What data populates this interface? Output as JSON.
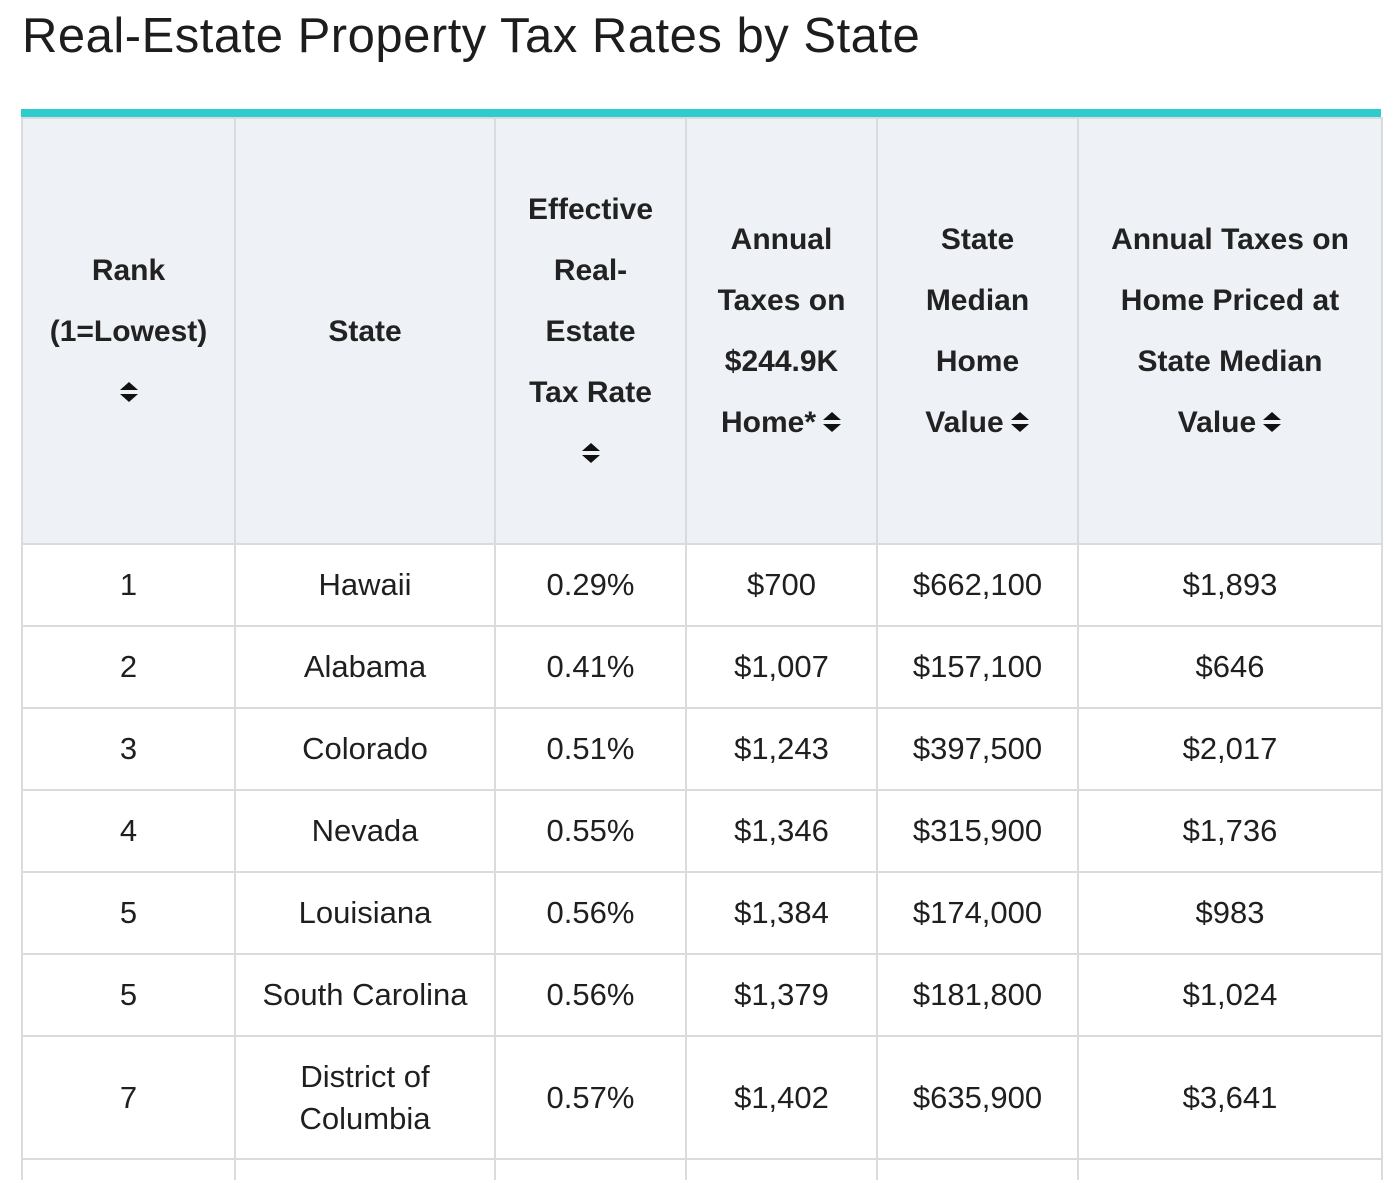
{
  "page": {
    "title": "Real-Estate Property Tax Rates by State"
  },
  "colors": {
    "accent_bar": "#2ecccc",
    "header_bg": "#eef2f6",
    "grid_line": "#d8dcdf"
  },
  "table": {
    "headers": [
      {
        "lines": [
          "Rank",
          "(1=Lowest)"
        ],
        "sortable": true,
        "icon": "sort-icon"
      },
      {
        "lines": [
          "State"
        ],
        "sortable": false
      },
      {
        "lines": [
          "Effective",
          "Real-",
          "Estate",
          "Tax Rate"
        ],
        "sortable": true,
        "icon": "sort-icon"
      },
      {
        "lines": [
          "Annual",
          "Taxes on",
          "$244.9K",
          "Home*"
        ],
        "sortable": true,
        "icon": "sort-icon"
      },
      {
        "lines": [
          "State",
          "Median",
          "Home",
          "Value"
        ],
        "sortable": true,
        "icon": "sort-icon"
      },
      {
        "lines": [
          "Annual Taxes on",
          "Home Priced at",
          "State Median",
          "Value"
        ],
        "sortable": true,
        "icon": "sort-icon"
      }
    ],
    "rows": [
      [
        "1",
        "Hawaii",
        "0.29%",
        "$700",
        "$662,100",
        "$1,893"
      ],
      [
        "2",
        "Alabama",
        "0.41%",
        "$1,007",
        "$157,100",
        "$646"
      ],
      [
        "3",
        "Colorado",
        "0.51%",
        "$1,243",
        "$397,500",
        "$2,017"
      ],
      [
        "4",
        "Nevada",
        "0.55%",
        "$1,346",
        "$315,900",
        "$1,736"
      ],
      [
        "5",
        "Louisiana",
        "0.56%",
        "$1,384",
        "$174,000",
        "$983"
      ],
      [
        "5",
        "South Carolina",
        "0.56%",
        "$1,379",
        "$181,800",
        "$1,024"
      ],
      [
        "7",
        "District of Columbia",
        "0.57%",
        "$1,402",
        "$635,900",
        "$3,641"
      ]
    ]
  }
}
